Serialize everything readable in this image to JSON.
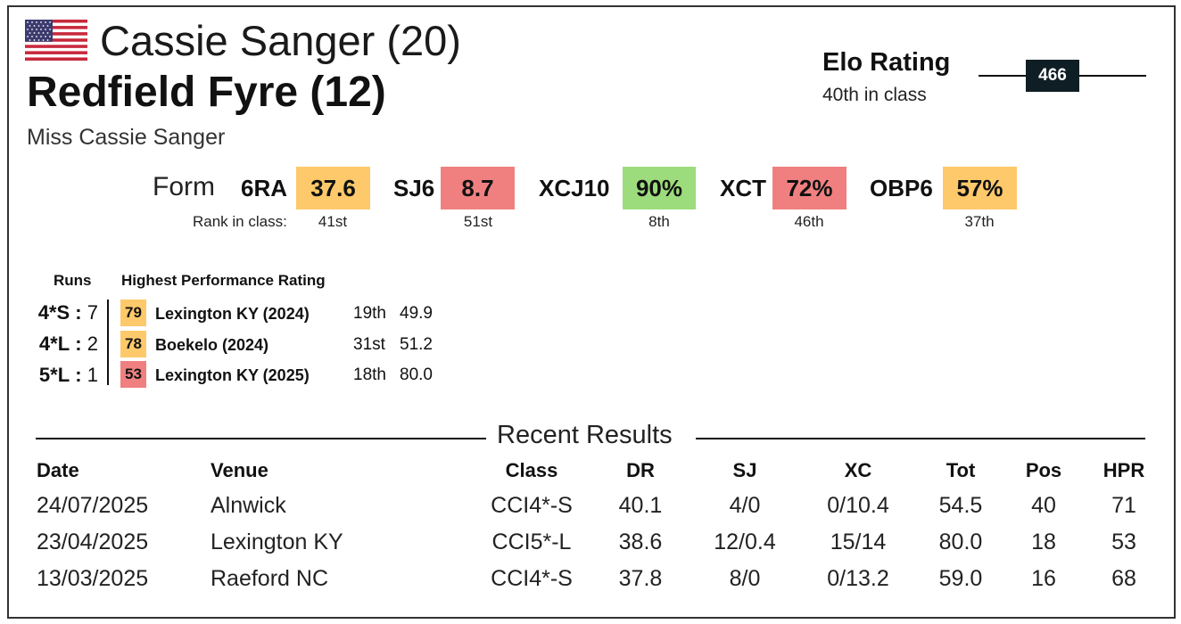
{
  "rider": {
    "name": "Cassie Sanger (20)",
    "flag_icon": "us-flag-icon"
  },
  "horse": {
    "name": "Redfield Fyre (12)"
  },
  "owner": "Miss Cassie Sanger",
  "elo": {
    "title": "Elo Rating",
    "rank": "40th in class",
    "value": "466"
  },
  "form": {
    "label": "Form",
    "rank_label": "Rank in class:",
    "metrics": [
      {
        "name": "6RA",
        "value": "37.6",
        "rank": "41st",
        "color": "#fdc96a"
      },
      {
        "name": "SJ6",
        "value": "8.7",
        "rank": "51st",
        "color": "#f08080"
      },
      {
        "name": "XCJ10",
        "value": "90%",
        "rank": "8th",
        "color": "#9ddc7c"
      },
      {
        "name": "XCT",
        "value": "72%",
        "rank": "46th",
        "color": "#f08080"
      },
      {
        "name": "OBP6",
        "value": "57%",
        "rank": "37th",
        "color": "#fdc96a"
      }
    ]
  },
  "runs": {
    "header": "Runs",
    "hpr_header": "Highest Performance Rating",
    "rows": [
      {
        "level": "4*S",
        "sep": ":",
        "count": "7",
        "hpr": "79",
        "hpr_color": "#fdc96a",
        "event": "Lexington KY  (2024)",
        "pos": "19th",
        "score": "49.9"
      },
      {
        "level": "4*L",
        "sep": ":",
        "count": "2",
        "hpr": "78",
        "hpr_color": "#fdc96a",
        "event": "Boekelo  (2024)",
        "pos": "31st",
        "score": "51.2"
      },
      {
        "level": "5*L",
        "sep": ":",
        "count": "1",
        "hpr": "53",
        "hpr_color": "#f08080",
        "event": "Lexington KY  (2025)",
        "pos": "18th",
        "score": "80.0"
      }
    ]
  },
  "recent": {
    "title": "Recent Results",
    "columns": [
      "Date",
      "Venue",
      "Class",
      "DR",
      "SJ",
      "XC",
      "Tot",
      "Pos",
      "HPR"
    ],
    "rows": [
      [
        "24/07/2025",
        "Alnwick",
        "CCI4*-S",
        "40.1",
        "4/0",
        "0/10.4",
        "54.5",
        "40",
        "71"
      ],
      [
        "23/04/2025",
        "Lexington KY",
        "CCI5*-L",
        "38.6",
        "12/0.4",
        "15/14",
        "80.0",
        "18",
        "53"
      ],
      [
        "13/03/2025",
        "Raeford NC",
        "CCI4*-S",
        "37.8",
        "8/0",
        "0/13.2",
        "59.0",
        "16",
        "68"
      ]
    ]
  }
}
